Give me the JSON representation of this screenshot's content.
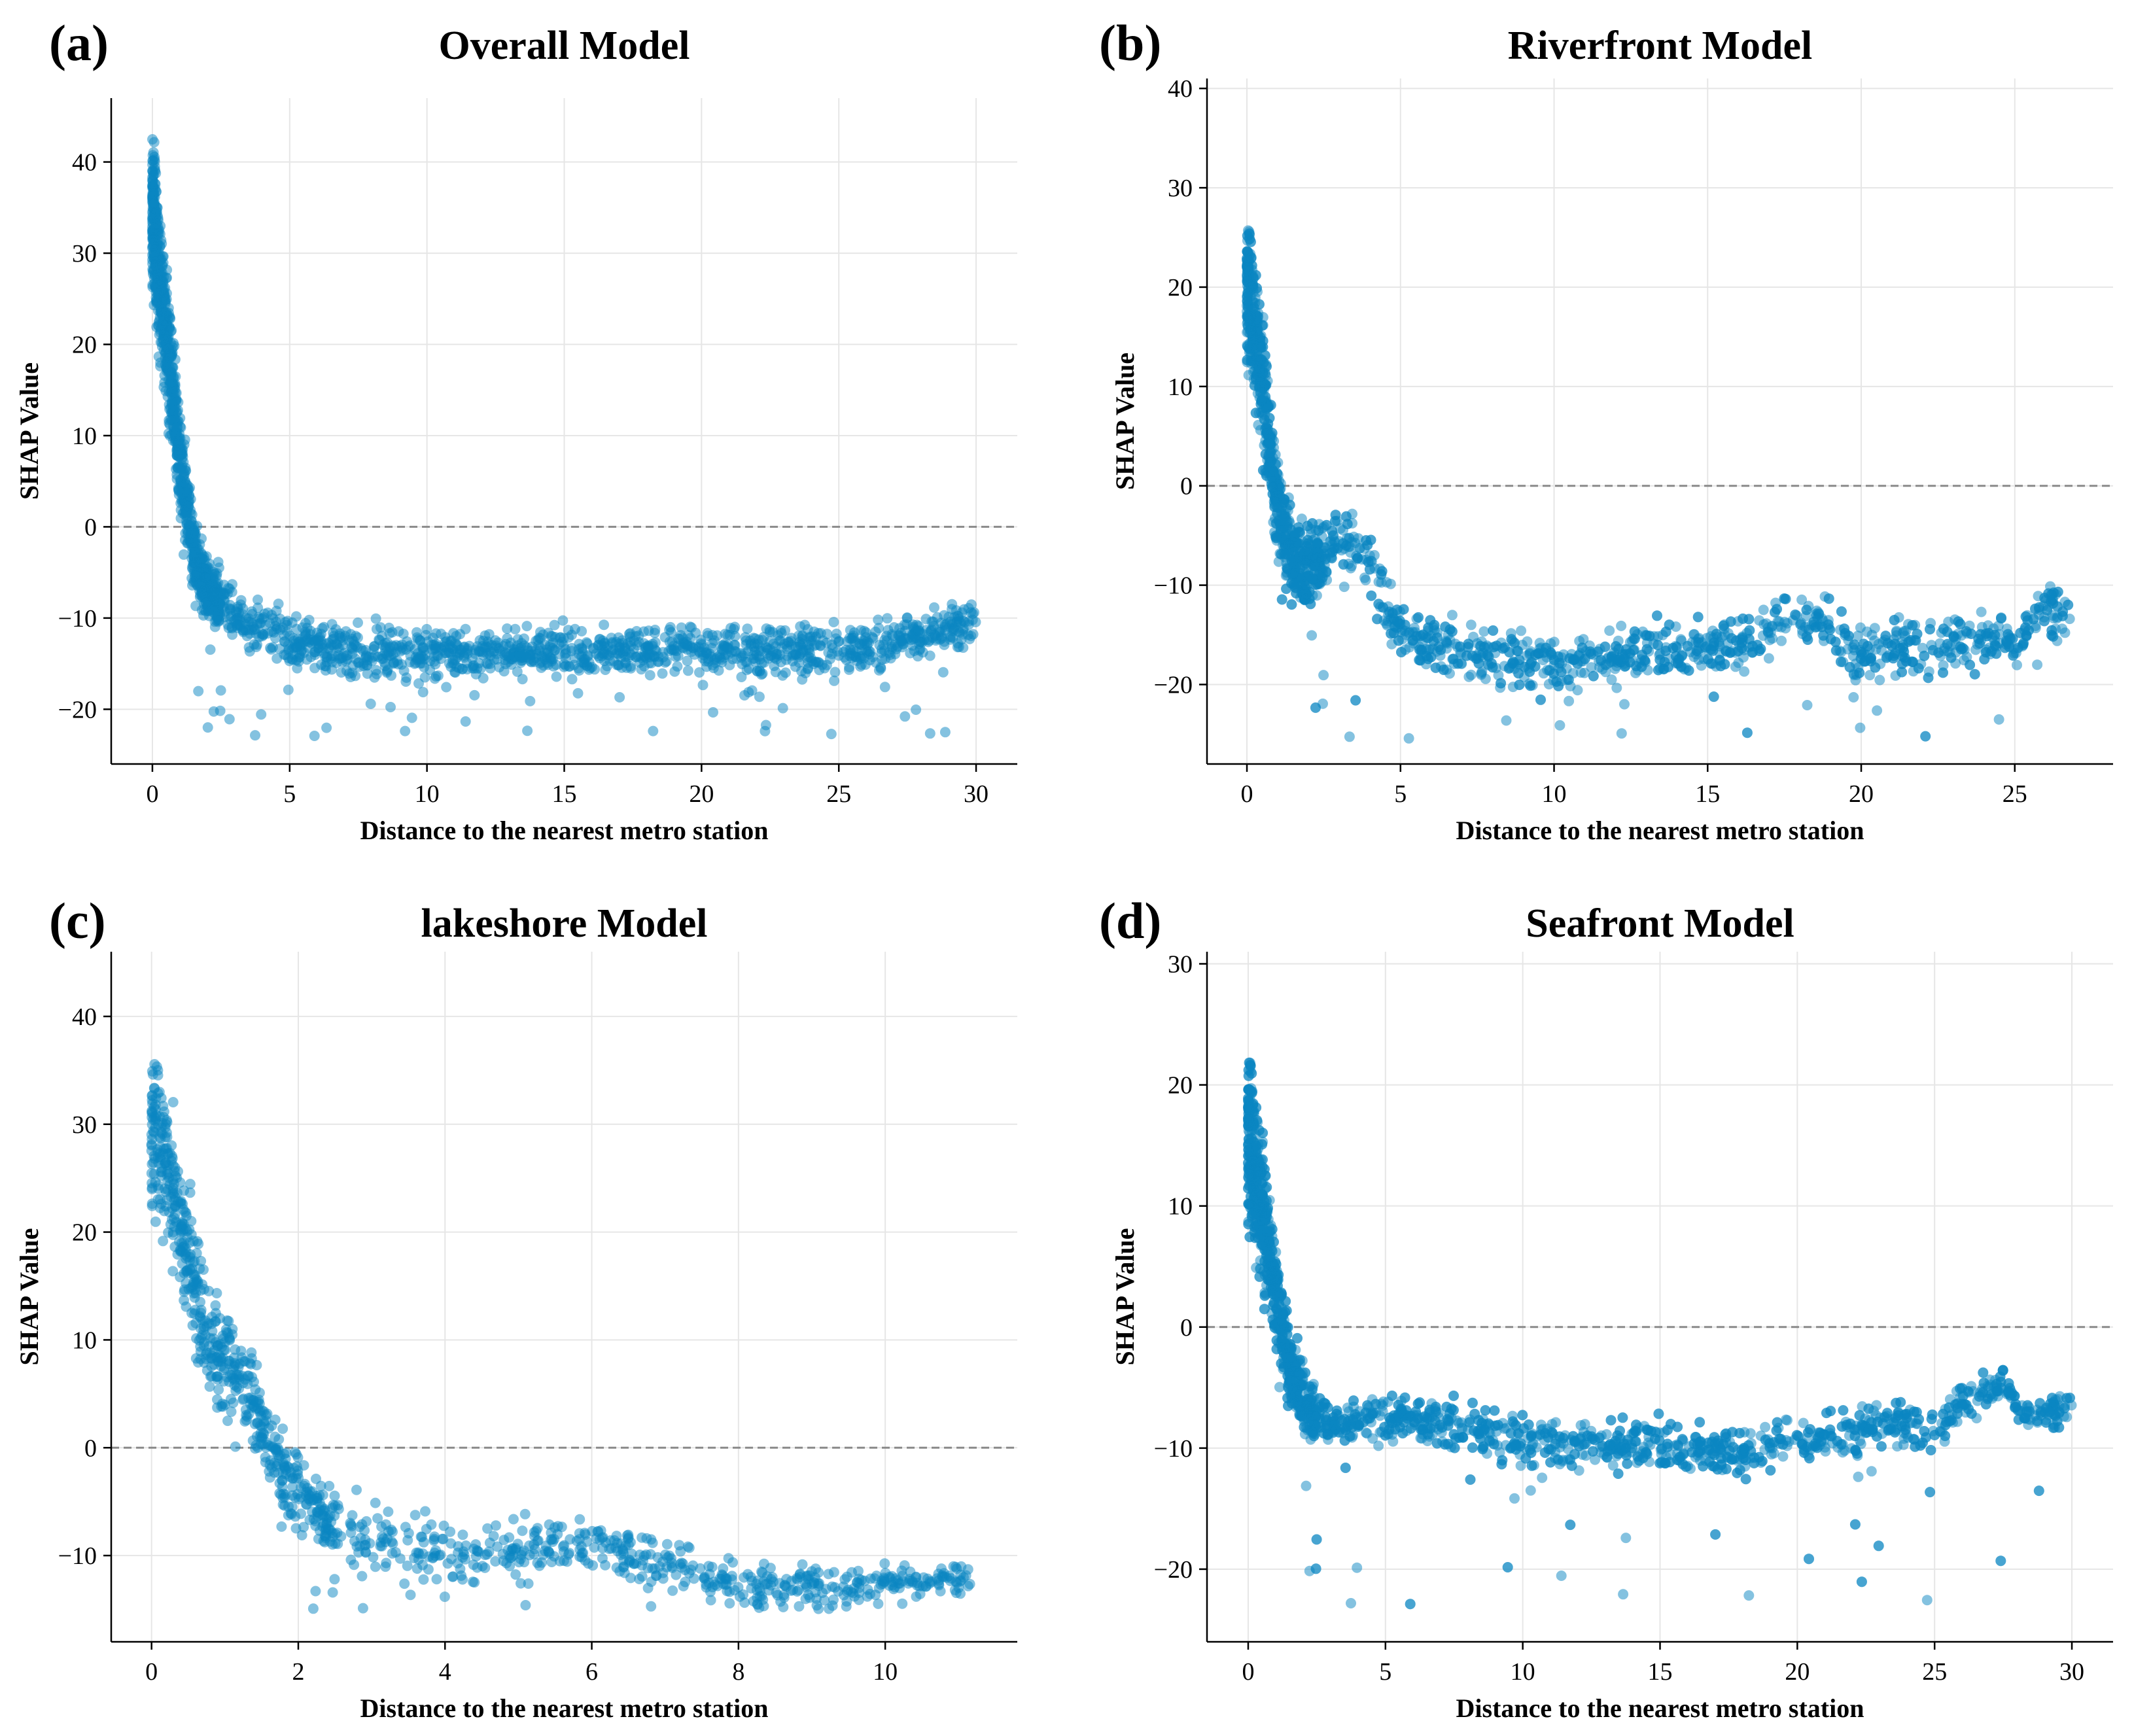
{
  "point_color": "#0a85c2",
  "chart_data": [
    {
      "type": "scatter",
      "panel_label": "(a)",
      "title": "Overall Model",
      "xlabel": "Distance to the nearest metro station",
      "ylabel": "SHAP Value",
      "xlim": [
        -1.5,
        31.5
      ],
      "ylim": [
        -26,
        47
      ],
      "xticks": [
        0,
        5,
        10,
        15,
        20,
        25,
        30
      ],
      "yticks": [
        -20,
        -10,
        0,
        10,
        20,
        30,
        40
      ],
      "reference_line": 0,
      "series": [
        {
          "name": "points",
          "trend": [
            [
              0,
              35
            ],
            [
              0.3,
              26
            ],
            [
              0.7,
              16
            ],
            [
              1.0,
              7
            ],
            [
              1.4,
              -1
            ],
            [
              1.8,
              -6
            ],
            [
              2.5,
              -8.5
            ],
            [
              3.5,
              -10.5
            ],
            [
              5,
              -12.5
            ],
            [
              7,
              -13.5
            ],
            [
              10,
              -14
            ],
            [
              15,
              -13.8
            ],
            [
              20,
              -13.5
            ],
            [
              25,
              -13.5
            ],
            [
              27,
              -12.5
            ],
            [
              30,
              -10.5
            ]
          ],
          "spread": [
            [
              0,
              8
            ],
            [
              1,
              5
            ],
            [
              2,
              3
            ],
            [
              5,
              2.5
            ],
            [
              30,
              2.5
            ]
          ],
          "outlier_floor": -23,
          "x_max": 30
        }
      ]
    },
    {
      "type": "scatter",
      "panel_label": "(b)",
      "title": "Riverfront Model",
      "xlabel": "Distance to the nearest metro station",
      "ylabel": "SHAP Value",
      "xlim": [
        -1.3,
        28.2
      ],
      "ylim": [
        -28,
        41
      ],
      "xticks": [
        0,
        5,
        10,
        15,
        20,
        25
      ],
      "yticks": [
        -20,
        -10,
        0,
        10,
        20,
        30,
        40
      ],
      "reference_line": 0,
      "series": [
        {
          "name": "points",
          "trend": [
            [
              0,
              20
            ],
            [
              0.3,
              15
            ],
            [
              0.6,
              8
            ],
            [
              0.9,
              0
            ],
            [
              1.2,
              -5
            ],
            [
              1.8,
              -9
            ],
            [
              2.5,
              -7
            ],
            [
              3,
              -4.5
            ],
            [
              4,
              -8
            ],
            [
              5,
              -15
            ],
            [
              8,
              -17
            ],
            [
              10,
              -18
            ],
            [
              13,
              -17
            ],
            [
              16,
              -16
            ],
            [
              18.5,
              -13
            ],
            [
              20,
              -17
            ],
            [
              23,
              -15.5
            ],
            [
              25,
              -16
            ],
            [
              26,
              -12
            ],
            [
              26.8,
              -13.5
            ]
          ],
          "spread": [
            [
              0,
              7
            ],
            [
              1,
              5
            ],
            [
              3,
              3
            ],
            [
              5,
              2.5
            ],
            [
              27,
              3
            ]
          ],
          "outlier_floor": -25.5,
          "x_max": 26.8
        }
      ]
    },
    {
      "type": "scatter",
      "panel_label": "(c)",
      "title": "lakeshore Model",
      "xlabel": "Distance to the nearest metro station",
      "ylabel": "SHAP Value",
      "xlim": [
        -0.55,
        11.8
      ],
      "ylim": [
        -18,
        46
      ],
      "xticks": [
        0,
        2,
        4,
        6,
        8,
        10
      ],
      "yticks": [
        -10,
        0,
        10,
        20,
        30,
        40
      ],
      "reference_line": 0,
      "series": [
        {
          "name": "points",
          "trend": [
            [
              0,
              30
            ],
            [
              0.3,
              24
            ],
            [
              0.6,
              15
            ],
            [
              0.8,
              9
            ],
            [
              1.2,
              7
            ],
            [
              1.5,
              2
            ],
            [
              1.8,
              -3
            ],
            [
              2.5,
              -7
            ],
            [
              3.5,
              -9
            ],
            [
              4.5,
              -10
            ],
            [
              5.5,
              -9
            ],
            [
              6,
              -9
            ],
            [
              7,
              -11
            ],
            [
              8,
              -12.5
            ],
            [
              9,
              -13
            ],
            [
              10,
              -12.5
            ],
            [
              11.2,
              -12
            ]
          ],
          "spread": [
            [
              0,
              7
            ],
            [
              1,
              5
            ],
            [
              2,
              3
            ],
            [
              4,
              3
            ],
            [
              6,
              2.5
            ],
            [
              11,
              1.5
            ]
          ],
          "outlier_floor": -15,
          "x_max": 11.2
        }
      ]
    },
    {
      "type": "scatter",
      "panel_label": "(d)",
      "title": "Seafront Model",
      "xlabel": "Distance to the nearest metro station",
      "ylabel": "SHAP Value",
      "xlim": [
        -1.5,
        31.5
      ],
      "ylim": [
        -26,
        31
      ],
      "xticks": [
        0,
        5,
        10,
        15,
        20,
        25,
        30
      ],
      "yticks": [
        -20,
        -10,
        0,
        10,
        20,
        30
      ],
      "reference_line": 0,
      "series": [
        {
          "name": "points",
          "trend": [
            [
              0,
              16
            ],
            [
              0.4,
              11
            ],
            [
              0.8,
              6
            ],
            [
              1.2,
              0
            ],
            [
              1.6,
              -4
            ],
            [
              2.2,
              -7
            ],
            [
              3,
              -8
            ],
            [
              5,
              -7.5
            ],
            [
              8,
              -8
            ],
            [
              10,
              -9.5
            ],
            [
              15,
              -10
            ],
            [
              18,
              -10.5
            ],
            [
              20,
              -9.5
            ],
            [
              23,
              -8
            ],
            [
              25,
              -8.5
            ],
            [
              26,
              -6
            ],
            [
              27.5,
              -5
            ],
            [
              28.5,
              -7.5
            ],
            [
              30,
              -6.5
            ]
          ],
          "spread": [
            [
              0,
              7
            ],
            [
              1,
              4
            ],
            [
              3,
              1.5
            ],
            [
              10,
              2
            ],
            [
              20,
              2
            ],
            [
              30,
              1.5
            ]
          ],
          "outlier_floor": -23,
          "x_max": 30
        }
      ]
    }
  ]
}
